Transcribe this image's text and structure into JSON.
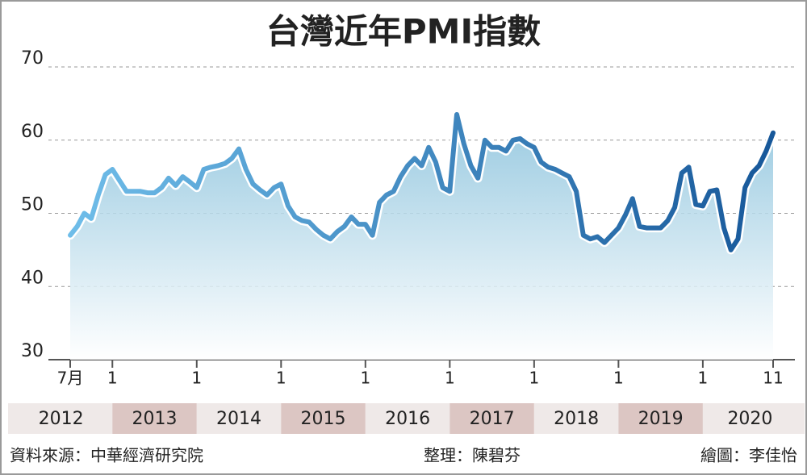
{
  "chart_data": {
    "type": "line",
    "area": true,
    "title": "台灣近年PMI指數",
    "x": [
      "2012-07",
      "2012-08",
      "2012-09",
      "2012-10",
      "2012-11",
      "2012-12",
      "2013-01",
      "2013-02",
      "2013-03",
      "2013-04",
      "2013-05",
      "2013-06",
      "2013-07",
      "2013-08",
      "2013-09",
      "2013-10",
      "2013-11",
      "2013-12",
      "2014-01",
      "2014-02",
      "2014-03",
      "2014-04",
      "2014-05",
      "2014-06",
      "2014-07",
      "2014-08",
      "2014-09",
      "2014-10",
      "2014-11",
      "2014-12",
      "2015-01",
      "2015-02",
      "2015-03",
      "2015-04",
      "2015-05",
      "2015-06",
      "2015-07",
      "2015-08",
      "2015-09",
      "2015-10",
      "2015-11",
      "2015-12",
      "2016-01",
      "2016-02",
      "2016-03",
      "2016-04",
      "2016-05",
      "2016-06",
      "2016-07",
      "2016-08",
      "2016-09",
      "2016-10",
      "2016-11",
      "2016-12",
      "2017-01",
      "2017-02",
      "2017-03",
      "2017-04",
      "2017-05",
      "2017-06",
      "2017-07",
      "2017-08",
      "2017-09",
      "2017-10",
      "2017-11",
      "2017-12",
      "2018-01",
      "2018-02",
      "2018-03",
      "2018-04",
      "2018-05",
      "2018-06",
      "2018-07",
      "2018-08",
      "2018-09",
      "2018-10",
      "2018-11",
      "2018-12",
      "2019-01",
      "2019-02",
      "2019-03",
      "2019-04",
      "2019-05",
      "2019-06",
      "2019-07",
      "2019-08",
      "2019-09",
      "2019-10",
      "2019-11",
      "2019-12",
      "2020-01",
      "2020-02",
      "2020-03",
      "2020-04",
      "2020-05",
      "2020-06",
      "2020-07",
      "2020-08",
      "2020-09",
      "2020-10",
      "2020-11"
    ],
    "series": [
      {
        "color": "#2a78b8",
        "values": [
          47.0,
          48.2,
          50.0,
          49.3,
          52.5,
          55.3,
          56.0,
          54.5,
          53.0,
          53.0,
          53.0,
          52.8,
          52.8,
          53.5,
          54.8,
          53.8,
          55.0,
          54.3,
          53.5,
          56.0,
          56.3,
          56.5,
          56.8,
          57.5,
          58.8,
          56.0,
          54.0,
          53.2,
          52.5,
          53.5,
          54.0,
          51.0,
          49.5,
          49.0,
          48.8,
          47.8,
          47.0,
          46.5,
          47.5,
          48.2,
          49.5,
          48.5,
          48.5,
          47.0,
          51.5,
          52.5,
          53.0,
          55.0,
          56.5,
          57.5,
          56.5,
          59.0,
          57.0,
          53.5,
          53.0,
          63.5,
          59.5,
          56.5,
          54.8,
          60.0,
          59.0,
          59.0,
          58.5,
          60.0,
          60.2,
          59.5,
          59.0,
          57.0,
          56.3,
          56.0,
          55.5,
          55.0,
          53.0,
          47.0,
          46.5,
          46.8,
          46.0,
          47.0,
          48.0,
          49.8,
          52.0,
          48.2,
          48.0,
          48.0,
          48.0,
          49.0,
          50.8,
          55.5,
          56.3,
          51.2,
          51.0,
          53.0,
          53.2,
          48.0,
          45.0,
          46.5,
          53.5,
          55.5,
          56.5,
          58.5,
          61.0
        ]
      }
    ],
    "line_gradient": [
      "#6fbde9",
      "#17589a"
    ],
    "area_gradient": [
      "#86c0db",
      "#ffffff"
    ],
    "ylim": [
      30,
      70
    ],
    "yticks": [
      30,
      40,
      50,
      60,
      70
    ],
    "grid": true,
    "xticks": [
      {
        "value": "2012-07",
        "label": "7月"
      },
      {
        "value": "2013-01",
        "label": "1"
      },
      {
        "value": "2014-01",
        "label": "1"
      },
      {
        "value": "2015-01",
        "label": "1"
      },
      {
        "value": "2016-01",
        "label": "1"
      },
      {
        "value": "2017-01",
        "label": "1"
      },
      {
        "value": "2018-01",
        "label": "1"
      },
      {
        "value": "2019-01",
        "label": "1"
      },
      {
        "value": "2020-01",
        "label": "1"
      },
      {
        "value": "2020-11",
        "label": "11"
      }
    ],
    "years": [
      {
        "label": "2012",
        "shaded": false
      },
      {
        "label": "2013",
        "shaded": true
      },
      {
        "label": "2014",
        "shaded": false
      },
      {
        "label": "2015",
        "shaded": true
      },
      {
        "label": "2016",
        "shaded": false
      },
      {
        "label": "2017",
        "shaded": true
      },
      {
        "label": "2018",
        "shaded": false
      },
      {
        "label": "2019",
        "shaded": true
      },
      {
        "label": "2020",
        "shaded": false
      }
    ],
    "year_band_colors": [
      "#efe9e8",
      "#dcc6c3"
    ],
    "source": "資料來源：中華經濟研究院",
    "editor": "整理：陳碧芬",
    "graphic": "繪圖：李佳怡"
  }
}
